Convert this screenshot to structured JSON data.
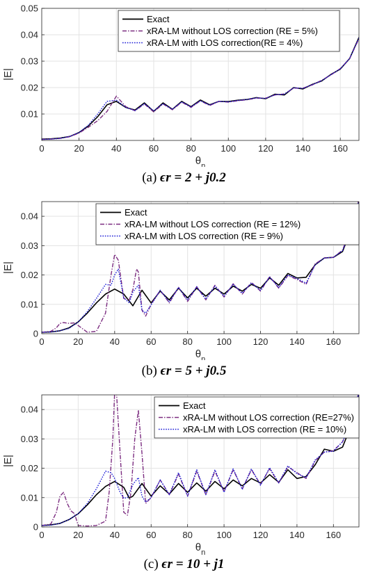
{
  "chart_data": [
    {
      "type": "line",
      "caption_prefix": "(a)",
      "caption_math": "ϵr = 2 + j0.2",
      "xlabel": "θn",
      "ylabel": "|E|",
      "xlim": [
        0,
        170
      ],
      "ylim": [
        0,
        0.05
      ],
      "xticks": [
        "0",
        "20",
        "40",
        "60",
        "80",
        "100",
        "120",
        "140",
        "160"
      ],
      "yticks": [
        "0.01",
        "0.02",
        "0.03",
        "0.04",
        "0.05"
      ],
      "grid": true,
      "legend_position": "top-center",
      "series": [
        {
          "name": "Exact",
          "color": "#000000",
          "style": "solid",
          "x": [
            0,
            5,
            10,
            15,
            20,
            25,
            30,
            35,
            40,
            45,
            50,
            55,
            60,
            65,
            70,
            75,
            80,
            85,
            90,
            95,
            100,
            105,
            110,
            115,
            120,
            125,
            130,
            135,
            140,
            145,
            150,
            155,
            160,
            165,
            170
          ],
          "y": [
            0.0005,
            0.0006,
            0.0009,
            0.0015,
            0.003,
            0.0055,
            0.009,
            0.0135,
            0.0148,
            0.0125,
            0.0115,
            0.0142,
            0.011,
            0.0142,
            0.0118,
            0.0148,
            0.0128,
            0.0153,
            0.0135,
            0.0148,
            0.0147,
            0.0152,
            0.0155,
            0.0162,
            0.0158,
            0.0175,
            0.0172,
            0.02,
            0.0195,
            0.0212,
            0.0225,
            0.025,
            0.027,
            0.031,
            0.039
          ]
        },
        {
          "name": "xRA-LM without LOS correction (RE = 5%)",
          "color": "#7b2c80",
          "style": "dashdot",
          "x": [
            0,
            5,
            10,
            15,
            20,
            25,
            30,
            35,
            40,
            45,
            50,
            55,
            60,
            65,
            70,
            75,
            80,
            85,
            90,
            95,
            100,
            105,
            110,
            115,
            120,
            125,
            130,
            135,
            140,
            145,
            150,
            155,
            160,
            165,
            170
          ],
          "y": [
            0.0004,
            0.0005,
            0.0008,
            0.0014,
            0.0028,
            0.005,
            0.0075,
            0.011,
            0.0168,
            0.0128,
            0.0112,
            0.0138,
            0.0108,
            0.0138,
            0.0116,
            0.0145,
            0.0125,
            0.015,
            0.0132,
            0.0148,
            0.0145,
            0.015,
            0.0154,
            0.016,
            0.016,
            0.0172,
            0.0176,
            0.0198,
            0.0198,
            0.021,
            0.0228,
            0.0248,
            0.0272,
            0.031,
            0.0385
          ]
        },
        {
          "name": "xRA-LM with LOS correction(RE = 4%)",
          "color": "#1a1ad6",
          "style": "dotted",
          "x": [
            0,
            5,
            10,
            15,
            20,
            25,
            30,
            35,
            40,
            45,
            50,
            55,
            60,
            65,
            70,
            75,
            80,
            85,
            90,
            95,
            100,
            105,
            110,
            115,
            120,
            125,
            130,
            135,
            140,
            145,
            150,
            155,
            160,
            165,
            170
          ],
          "y": [
            0.0004,
            0.0005,
            0.0008,
            0.0015,
            0.003,
            0.0058,
            0.01,
            0.0148,
            0.0152,
            0.0125,
            0.0113,
            0.0139,
            0.0112,
            0.0139,
            0.0118,
            0.0146,
            0.0127,
            0.015,
            0.0134,
            0.0148,
            0.0146,
            0.0151,
            0.0155,
            0.0161,
            0.0159,
            0.0173,
            0.0175,
            0.0199,
            0.0197,
            0.0211,
            0.0226,
            0.0249,
            0.0271,
            0.031,
            0.0388
          ]
        }
      ]
    },
    {
      "type": "line",
      "caption_prefix": "(b)",
      "caption_math": "ϵr = 5 + j0.5",
      "xlabel": "θn",
      "ylabel": "|E|",
      "xlim": [
        0,
        174
      ],
      "ylim": [
        0,
        0.045
      ],
      "xticks": [
        "0",
        "20",
        "40",
        "60",
        "80",
        "100",
        "120",
        "140",
        "160"
      ],
      "yticks": [
        "0",
        "0.01",
        "0.02",
        "0.03",
        "0.04"
      ],
      "grid": true,
      "legend_position": "top-center",
      "series": [
        {
          "name": "Exact",
          "color": "#000000",
          "style": "solid",
          "x": [
            0,
            5,
            10,
            15,
            20,
            25,
            30,
            35,
            40,
            45,
            50,
            55,
            60,
            65,
            70,
            75,
            80,
            85,
            90,
            95,
            100,
            105,
            110,
            115,
            120,
            125,
            130,
            135,
            140,
            145,
            150,
            155,
            160,
            165,
            170,
            174
          ],
          "y": [
            0.0005,
            0.0006,
            0.001,
            0.002,
            0.004,
            0.007,
            0.0105,
            0.0135,
            0.0152,
            0.0135,
            0.0095,
            0.0148,
            0.0105,
            0.0145,
            0.0115,
            0.0155,
            0.0122,
            0.0155,
            0.0128,
            0.0155,
            0.0135,
            0.0162,
            0.0145,
            0.0168,
            0.0155,
            0.019,
            0.0165,
            0.0205,
            0.019,
            0.0192,
            0.0235,
            0.0258,
            0.026,
            0.028,
            0.036,
            0.045
          ]
        },
        {
          "name": "xRA-LM without LOS correction (RE = 12%)",
          "color": "#7b2c80",
          "style": "dashdot",
          "x": [
            0,
            5,
            8,
            10,
            12,
            15,
            18,
            20,
            25,
            30,
            35,
            38,
            40,
            42,
            45,
            48,
            50,
            52,
            53,
            55,
            57,
            60,
            65,
            70,
            75,
            80,
            85,
            90,
            95,
            100,
            105,
            110,
            115,
            120,
            125,
            130,
            135,
            140,
            145,
            150,
            155,
            160,
            165,
            170,
            174
          ],
          "y": [
            0.0005,
            0.0008,
            0.002,
            0.0035,
            0.0038,
            0.0035,
            0.0037,
            0.0028,
            0.0005,
            0.0008,
            0.007,
            0.02,
            0.027,
            0.025,
            0.012,
            0.0115,
            0.015,
            0.022,
            0.021,
            0.008,
            0.006,
            0.01,
            0.0148,
            0.0105,
            0.0158,
            0.011,
            0.016,
            0.0115,
            0.0165,
            0.0125,
            0.017,
            0.0135,
            0.0175,
            0.0145,
            0.0195,
            0.0155,
            0.0198,
            0.0185,
            0.0168,
            0.0238,
            0.0258,
            0.026,
            0.0285,
            0.0365,
            0.046
          ]
        },
        {
          "name": "xRA-LM with LOS correction (RE = 9%)",
          "color": "#1a1ad6",
          "style": "dotted",
          "x": [
            0,
            5,
            10,
            15,
            20,
            25,
            30,
            35,
            38,
            40,
            42,
            45,
            48,
            50,
            53,
            55,
            57,
            60,
            65,
            70,
            75,
            80,
            85,
            90,
            95,
            100,
            105,
            110,
            115,
            120,
            125,
            130,
            135,
            140,
            145,
            150,
            155,
            160,
            165,
            170,
            174
          ],
          "y": [
            0.0005,
            0.0006,
            0.001,
            0.0018,
            0.004,
            0.0075,
            0.012,
            0.0168,
            0.0165,
            0.02,
            0.022,
            0.0122,
            0.0105,
            0.0142,
            0.0165,
            0.008,
            0.007,
            0.0098,
            0.0148,
            0.0108,
            0.0158,
            0.0115,
            0.016,
            0.0118,
            0.0162,
            0.0128,
            0.0168,
            0.0138,
            0.0173,
            0.0148,
            0.0193,
            0.0158,
            0.02,
            0.0188,
            0.0172,
            0.0235,
            0.0258,
            0.026,
            0.0283,
            0.0362,
            0.0455
          ]
        }
      ]
    },
    {
      "type": "line",
      "caption_prefix": "(c)",
      "caption_math": "ϵr = 10 + j1",
      "xlabel": "θn",
      "ylabel": "|E|",
      "xlim": [
        0,
        174
      ],
      "ylim": [
        0,
        0.045
      ],
      "xticks": [
        "0",
        "20",
        "40",
        "60",
        "80",
        "100",
        "120",
        "140",
        "160"
      ],
      "yticks": [
        "0",
        "0.01",
        "0.02",
        "0.03",
        "0.04"
      ],
      "grid": true,
      "legend_position": "top-right",
      "series": [
        {
          "name": "Exact",
          "color": "#000000",
          "style": "solid",
          "x": [
            0,
            5,
            10,
            15,
            20,
            25,
            30,
            35,
            40,
            45,
            48,
            50,
            55,
            60,
            65,
            70,
            75,
            80,
            85,
            90,
            95,
            100,
            105,
            110,
            115,
            120,
            125,
            130,
            135,
            140,
            145,
            150,
            155,
            160,
            165,
            170,
            174
          ],
          "y": [
            0.0005,
            0.0007,
            0.0012,
            0.0025,
            0.0045,
            0.0075,
            0.011,
            0.0138,
            0.0155,
            0.0135,
            0.0098,
            0.0105,
            0.0148,
            0.0105,
            0.014,
            0.0112,
            0.0148,
            0.0118,
            0.015,
            0.0122,
            0.0155,
            0.013,
            0.016,
            0.014,
            0.0165,
            0.015,
            0.0178,
            0.0152,
            0.0195,
            0.0165,
            0.0172,
            0.0212,
            0.0265,
            0.0258,
            0.0272,
            0.035,
            0.045
          ]
        },
        {
          "name": "xRA-LM without LOS correction (RE=27%)",
          "color": "#7b2c80",
          "style": "dashdot",
          "x": [
            0,
            5,
            8,
            10,
            12,
            14,
            16,
            18,
            20,
            25,
            30,
            35,
            37,
            39,
            40,
            41,
            43,
            45,
            47,
            49,
            51,
            53,
            55,
            57,
            60,
            65,
            70,
            75,
            80,
            85,
            90,
            95,
            100,
            105,
            110,
            115,
            120,
            125,
            130,
            135,
            140,
            145,
            150,
            155,
            160,
            165,
            170,
            174
          ],
          "y": [
            0.0005,
            0.001,
            0.005,
            0.0105,
            0.0118,
            0.008,
            0.0055,
            0.0045,
            0.0005,
            0.0003,
            0.0005,
            0.002,
            0.012,
            0.03,
            0.046,
            0.046,
            0.025,
            0.005,
            0.004,
            0.012,
            0.03,
            0.0398,
            0.025,
            0.008,
            0.01,
            0.016,
            0.011,
            0.018,
            0.0105,
            0.019,
            0.011,
            0.019,
            0.012,
            0.0195,
            0.013,
            0.0195,
            0.0145,
            0.0198,
            0.015,
            0.0205,
            0.0185,
            0.0165,
            0.0225,
            0.0255,
            0.026,
            0.029,
            0.0365,
            0.046
          ]
        },
        {
          "name": "xRA-LM with LOS correction (RE = 10%)",
          "color": "#1a1ad6",
          "style": "dotted",
          "x": [
            0,
            5,
            10,
            15,
            20,
            25,
            30,
            35,
            38,
            40,
            43,
            45,
            47,
            50,
            53,
            55,
            57,
            60,
            65,
            70,
            75,
            80,
            85,
            90,
            95,
            100,
            105,
            110,
            115,
            120,
            125,
            130,
            135,
            140,
            145,
            150,
            155,
            160,
            165,
            170,
            174
          ],
          "y": [
            0.0005,
            0.0006,
            0.0012,
            0.0025,
            0.0045,
            0.008,
            0.013,
            0.019,
            0.0185,
            0.0165,
            0.0118,
            0.0098,
            0.01,
            0.0145,
            0.0168,
            0.0105,
            0.0085,
            0.01,
            0.016,
            0.011,
            0.0185,
            0.0105,
            0.0195,
            0.011,
            0.0195,
            0.0118,
            0.0198,
            0.0128,
            0.0198,
            0.0142,
            0.0202,
            0.015,
            0.0208,
            0.0182,
            0.0168,
            0.0228,
            0.0255,
            0.0258,
            0.029,
            0.036,
            0.0458
          ]
        }
      ]
    }
  ]
}
